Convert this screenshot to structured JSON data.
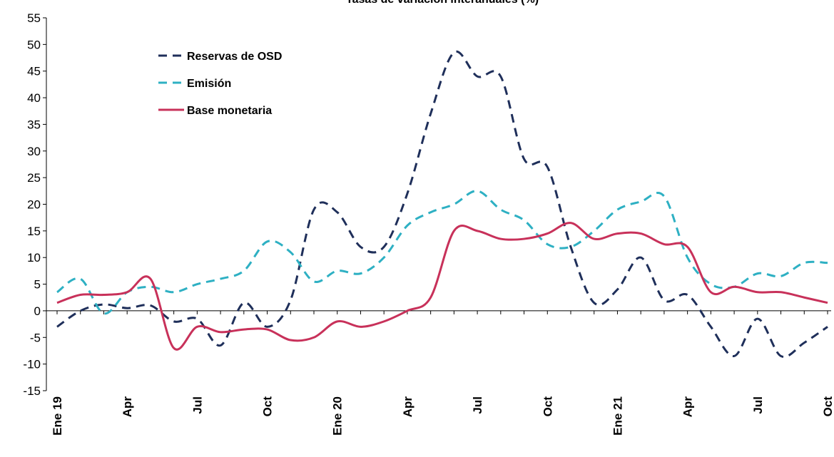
{
  "chart_data": {
    "type": "line",
    "title": "Tasas de variación interanuales (%)",
    "categories": [
      "Ene 19",
      null,
      null,
      "Apr",
      null,
      null,
      "Jul",
      null,
      null,
      "Oct",
      null,
      null,
      "Ene 20",
      null,
      null,
      "Apr",
      null,
      null,
      "Jul",
      null,
      null,
      "Oct",
      null,
      null,
      "Ene 21",
      null,
      null,
      "Apr",
      null,
      null,
      "Jul",
      null,
      null,
      "Oct"
    ],
    "series": [
      {
        "name": "Reservas de OSD",
        "color": "#1f2f5a",
        "dash": true,
        "values": [
          -3,
          0,
          1.2,
          0.5,
          1,
          -2,
          -1.5,
          -6.5,
          1.5,
          -3,
          2,
          19,
          18.5,
          12,
          12,
          22,
          37,
          48.5,
          44,
          44,
          28.5,
          27,
          12,
          1.5,
          4,
          10,
          2,
          3,
          -3,
          -8.5,
          -1.5,
          -8.5,
          -6,
          -3
        ]
      },
      {
        "name": "Emisión",
        "color": "#2eb0c3",
        "dash": true,
        "values": [
          3.5,
          6,
          -0.5,
          3.5,
          4.5,
          3.5,
          5,
          6,
          7.5,
          13,
          11,
          5.5,
          7.5,
          7,
          10,
          16,
          18.5,
          20,
          22.5,
          19,
          17,
          12.5,
          12,
          15,
          19,
          20.5,
          21.5,
          10,
          5,
          4.5,
          7,
          6.5,
          9,
          9
        ]
      },
      {
        "name": "Base monetaria",
        "color": "#c8315a",
        "dash": false,
        "values": [
          1.5,
          3,
          3,
          3.5,
          6,
          -7,
          -3,
          -4,
          -3.5,
          -3.5,
          -5.5,
          -5,
          -2,
          -3,
          -2,
          0,
          2.5,
          15,
          15,
          13.5,
          13.5,
          14.5,
          16.5,
          13.5,
          14.5,
          14.5,
          12.5,
          12,
          3.5,
          4.5,
          3.5,
          3.5,
          2.5,
          1.5
        ]
      }
    ],
    "ylim": [
      -15,
      55
    ],
    "yticks": [
      -15,
      -10,
      -5,
      0,
      5,
      10,
      15,
      20,
      25,
      30,
      35,
      40,
      45,
      50,
      55
    ],
    "legend": "upper-left"
  }
}
